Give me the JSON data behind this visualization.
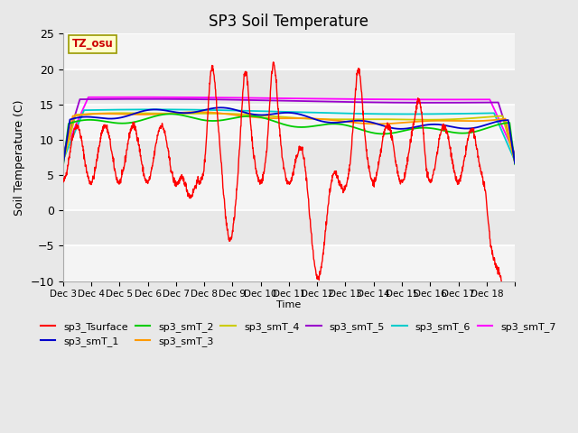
{
  "title": "SP3 Soil Temperature",
  "xlabel": "Time",
  "ylabel": "Soil Temperature (C)",
  "ylim": [
    -10,
    25
  ],
  "xlim": [
    0,
    16
  ],
  "xtick_positions": [
    0,
    1,
    2,
    3,
    4,
    5,
    6,
    7,
    8,
    9,
    10,
    11,
    12,
    13,
    14,
    15,
    16
  ],
  "xtick_labels": [
    "Dec 3",
    "Dec 4",
    "Dec 5",
    "Dec 6",
    "Dec 7",
    "Dec 8",
    "Dec 9",
    "Dec 10",
    "Dec 11",
    "Dec 12",
    "Dec 13",
    "Dec 14",
    "Dec 15",
    "Dec 16",
    "Dec 17",
    "Dec 18",
    ""
  ],
  "ytick_positions": [
    -10,
    -5,
    0,
    5,
    10,
    15,
    20,
    25
  ],
  "tz_label": "TZ_osu",
  "bg_color": "#e8e8e8",
  "series_colors": {
    "sp3_Tsurface": "#ff0000",
    "sp3_smT_1": "#0000cc",
    "sp3_smT_2": "#00cc00",
    "sp3_smT_3": "#ff9900",
    "sp3_smT_4": "#cccc00",
    "sp3_smT_5": "#9900cc",
    "sp3_smT_6": "#00cccc",
    "sp3_smT_7": "#ff00ff"
  }
}
